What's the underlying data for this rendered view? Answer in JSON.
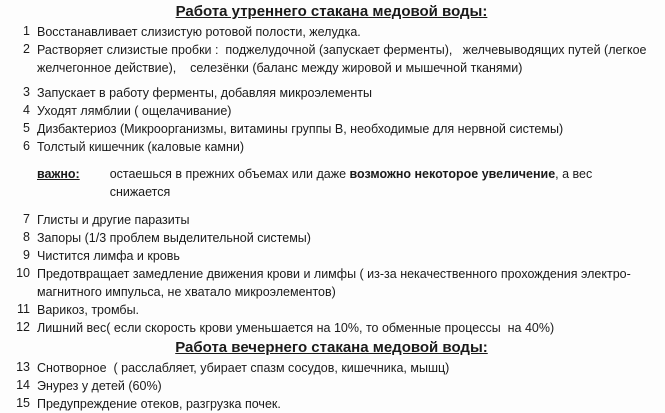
{
  "document": {
    "background_color": "#fdfdfd",
    "text_color": "#1a1a1a"
  },
  "morning_section": {
    "title": "Работа утреннего стакана медовой воды:",
    "items_before_note": [
      {
        "num": "1",
        "text": "Восстанавливает слизистую ротовой полости, желудка."
      },
      {
        "num": "2",
        "text": "Растворяет слизистые пробки :  поджелудочной (запускает ферменты),   желчевыводящих путей (легкое желчегонное действие),    селезёнки (баланс между жировой и мышечной тканями)"
      },
      {
        "num": "3",
        "text": "Запускает в работу ферменты, добавляя микроэлементы"
      },
      {
        "num": "4",
        "text": "Уходят лямблии ( ощелачивание)"
      },
      {
        "num": "5",
        "text": "Дизбактериоз (Микроорганизмы, витамины группы В, необходимые для нервной системы)"
      },
      {
        "num": "6",
        "text": "Толстый кишечник (каловые камни)"
      }
    ],
    "note": {
      "label": "важно:",
      "text_before": "остаешься в прежних объемах или даже ",
      "text_bold": "возможно некоторое увеличение",
      "text_after": ", а вес снижается"
    },
    "items_after_note": [
      {
        "num": "7",
        "text": "Глисты и другие паразиты"
      },
      {
        "num": "8",
        "text": "Запоры (1/3 проблем выделительной системы)"
      },
      {
        "num": "9",
        "text": "Чистится лимфа и кровь"
      },
      {
        "num": "10",
        "text": "Предотвращает замедление движения крови и лимфы ( из-за некачественного прохождения электро-магнитного импульса, не хватало микроэлементов)"
      },
      {
        "num": "11",
        "text": "Варикоз, тромбы."
      },
      {
        "num": "12",
        "text": "Лишний вес( если скорость крови уменьшается на 10%, то обменные процессы  на 40%)"
      }
    ]
  },
  "evening_section": {
    "title": "Работа вечернего стакана медовой воды:",
    "items": [
      {
        "num": "13",
        "text": "Снотворное  ( расслабляет, убирает спазм сосудов, кишечника, мышц)"
      },
      {
        "num": "14",
        "text": "Энурез у детей (60%)"
      },
      {
        "num": "15",
        "text": "Предупреждение отеков, разгрузка почек."
      }
    ]
  }
}
